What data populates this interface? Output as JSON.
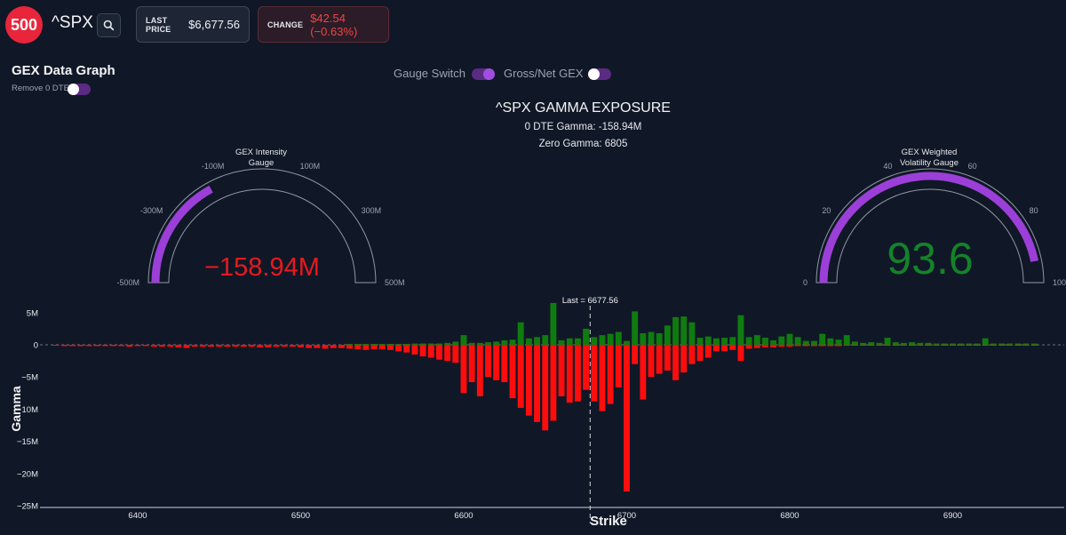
{
  "header": {
    "logo_text": "500",
    "ticker": "^SPX",
    "last_price_label": "LAST PRICE",
    "last_price_value": "$6,677.56",
    "change_label": "CHANGE",
    "change_value": "$42.54 (−0.63%)"
  },
  "section": {
    "title": "GEX Data Graph",
    "remove_0dte_label": "Remove 0 DTE"
  },
  "switches": {
    "gauge_switch_label": "Gauge Switch",
    "gross_net_label": "Gross/Net GEX"
  },
  "chart_header": {
    "title": "^SPX GAMMA EXPOSURE",
    "dte_gamma": "0 DTE Gamma: -158.94M",
    "zero_gamma": "Zero Gamma: 6805"
  },
  "gauges": {
    "intensity": {
      "title_line1": "GEX Intensity",
      "title_line2": "Gauge",
      "value": -158.94,
      "value_text": "−158.94M",
      "min": -500,
      "max": 500,
      "ticks": [
        "-500M",
        "-300M",
        "-100M",
        "100M",
        "300M",
        "500M"
      ],
      "value_color": "#e8191f",
      "bar_color": "#9c3fd8"
    },
    "volatility": {
      "title_line1": "GEX Weighted",
      "title_line2": "Volatility Gauge",
      "value": 93.6,
      "value_text": "93.6",
      "min": 0,
      "max": 100,
      "ticks": [
        "0",
        "20",
        "40",
        "60",
        "80",
        "100"
      ],
      "value_color": "#15822a",
      "bar_color": "#9c3fd8"
    }
  },
  "chart_data": {
    "type": "bar",
    "xlabel": "Strike",
    "ylabel": "Gamma",
    "xlim": [
      6340,
      6955
    ],
    "ylim": [
      -25,
      6
    ],
    "x_ticks": [
      6400,
      6500,
      6600,
      6700,
      6800,
      6900
    ],
    "y_ticks": [
      5,
      0,
      -5,
      -10,
      -15,
      -20,
      -25
    ],
    "y_tick_labels": [
      "5M",
      "0",
      "−5M",
      "−10M",
      "−15M",
      "−20M",
      "−25M"
    ],
    "last_price": 6677.56,
    "last_label": "Last = 6677.56",
    "positive_color": "#0f7c0f",
    "negative_color": "#ff0d0d",
    "strikes": [
      6350,
      6355,
      6360,
      6365,
      6370,
      6375,
      6380,
      6385,
      6390,
      6395,
      6400,
      6405,
      6410,
      6415,
      6420,
      6425,
      6430,
      6435,
      6440,
      6445,
      6450,
      6455,
      6460,
      6465,
      6470,
      6475,
      6480,
      6485,
      6490,
      6495,
      6500,
      6505,
      6510,
      6515,
      6520,
      6525,
      6530,
      6535,
      6540,
      6545,
      6550,
      6555,
      6560,
      6565,
      6570,
      6575,
      6580,
      6585,
      6590,
      6595,
      6600,
      6605,
      6610,
      6615,
      6620,
      6625,
      6630,
      6635,
      6640,
      6645,
      6650,
      6655,
      6660,
      6665,
      6670,
      6675,
      6680,
      6685,
      6690,
      6695,
      6700,
      6705,
      6710,
      6715,
      6720,
      6725,
      6730,
      6735,
      6740,
      6745,
      6750,
      6755,
      6760,
      6765,
      6770,
      6775,
      6780,
      6785,
      6790,
      6795,
      6800,
      6805,
      6810,
      6815,
      6820,
      6825,
      6830,
      6835,
      6840,
      6845,
      6850,
      6855,
      6860,
      6865,
      6870,
      6875,
      6880,
      6885,
      6890,
      6895,
      6900,
      6905,
      6910,
      6915,
      6920,
      6925,
      6930,
      6935,
      6940,
      6945,
      6950
    ],
    "positive": [
      0,
      0,
      0,
      0,
      0,
      0,
      0,
      0,
      0,
      0,
      0,
      0,
      0,
      0,
      0,
      0,
      0,
      0,
      0,
      0,
      0,
      0,
      0,
      0,
      0,
      0,
      0,
      0,
      0,
      0,
      0,
      0,
      0,
      0,
      0,
      0,
      0.1,
      0.1,
      0.1,
      0.1,
      0.1,
      0.1,
      0.1,
      0.1,
      0.2,
      0.2,
      0.2,
      0.2,
      0.3,
      0.5,
      1.5,
      0.3,
      0.3,
      0.4,
      0.5,
      0.7,
      0.8,
      3.5,
      1.0,
      1.2,
      1.5,
      6.5,
      0.7,
      1.0,
      1.0,
      2.5,
      1.2,
      1.5,
      1.7,
      2.0,
      0.6,
      5.2,
      1.8,
      2.0,
      1.8,
      3.0,
      4.3,
      4.4,
      3.5,
      1.1,
      1.3,
      1.0,
      1.1,
      1.2,
      4.6,
      1.2,
      1.5,
      1.1,
      0.7,
      1.3,
      1.7,
      1.2,
      0.6,
      0.6,
      1.7,
      1.0,
      0.8,
      1.5,
      0.5,
      0.3,
      0.4,
      0.3,
      1.1,
      0.4,
      0.3,
      0.4,
      0.3,
      0.3,
      0.2,
      0.2,
      0.2,
      0.2,
      0.2,
      0.2,
      1.0,
      0.2,
      0.2,
      0.2,
      0.2,
      0.2,
      0.2
    ],
    "negative": [
      -0.1,
      -0.2,
      -0.2,
      -0.2,
      -0.2,
      -0.2,
      -0.2,
      -0.2,
      -0.2,
      -0.3,
      -0.2,
      -0.2,
      -0.3,
      -0.3,
      -0.3,
      -0.4,
      -0.5,
      -0.3,
      -0.3,
      -0.3,
      -0.3,
      -0.3,
      -0.3,
      -0.3,
      -0.3,
      -0.4,
      -0.4,
      -0.3,
      -0.3,
      -0.3,
      -0.4,
      -0.5,
      -0.5,
      -0.6,
      -0.5,
      -0.5,
      -0.6,
      -0.7,
      -0.8,
      -0.7,
      -0.7,
      -0.8,
      -1.0,
      -1.2,
      -1.5,
      -1.8,
      -2.0,
      -2.3,
      -2.5,
      -2.8,
      -7.5,
      -5.8,
      -8.0,
      -5.0,
      -5.5,
      -5.8,
      -8.3,
      -9.8,
      -11.0,
      -12.0,
      -13.3,
      -11.8,
      -8.0,
      -9.0,
      -8.8,
      -7.0,
      -8.8,
      -10.3,
      -9.2,
      -6.6,
      -22.8,
      -3.0,
      -8.5,
      -5.0,
      -4.5,
      -4.0,
      -5.5,
      -4.3,
      -3.0,
      -2.5,
      -2.0,
      -1.0,
      -1.0,
      -0.8,
      -2.5,
      -0.6,
      -0.5,
      -0.4,
      -0.4,
      -0.3,
      -0.3,
      -0.2,
      -0.2,
      -0.2,
      -0.2,
      -0.2,
      -0.2,
      -0.1,
      -0.1,
      -0.1,
      -0.1,
      -0.1,
      -0.1,
      -0.1,
      -0.1,
      -0.1,
      -0.1,
      -0.1,
      -0.1,
      -0.1,
      -0.1,
      -0.1,
      -0.1,
      -0.1,
      -0.1,
      -0.1,
      -0.1,
      -0.1,
      -0.1,
      -0.1,
      -0.1
    ]
  }
}
